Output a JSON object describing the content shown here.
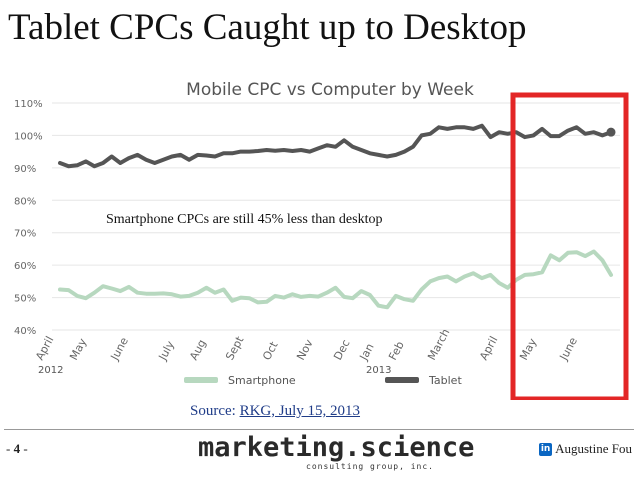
{
  "slide": {
    "title": "Tablet CPCs Caught up to Desktop",
    "source_label": "Source: ",
    "source_link": "RKG, July 15, 2013",
    "page_prefix": "- ",
    "page_number": "4",
    "page_suffix": " -",
    "logo_main": "marketing.science",
    "logo_sub": "consulting group, inc.",
    "author": "Augustine Fou",
    "linkedin_glyph": "in"
  },
  "colors": {
    "smartphone": "#b7d8bf",
    "tablet": "#555555",
    "highlight_box": "#e32626"
  },
  "chart_data": {
    "type": "line",
    "title": "Mobile CPC vs Computer by Week",
    "xlabel": "",
    "ylabel": "",
    "ylim": [
      40,
      110
    ],
    "yticks": [
      "40%",
      "50%",
      "60%",
      "70%",
      "80%",
      "90%",
      "100%",
      "110%"
    ],
    "grid": true,
    "x_labels": [
      "April",
      "May",
      "June",
      "July",
      "Aug",
      "Sept",
      "Oct",
      "Nov",
      "Dec",
      "Jan",
      "Feb",
      "March",
      "April",
      "May",
      "June"
    ],
    "years": [
      "2012",
      "2013"
    ],
    "annotation": "Smartphone CPCs are still 45% less than desktop",
    "highlight": "last 9 weeks (April 2013 – June 2013)",
    "legend": [
      "Smartphone",
      "Tablet"
    ],
    "series": [
      {
        "name": "Smartphone",
        "values": [
          52.5,
          52.3,
          50.5,
          49.8,
          51.5,
          53.5,
          52.8,
          52.0,
          53.3,
          51.5,
          51.2,
          51.2,
          51.3,
          51.0,
          50.3,
          50.5,
          51.5,
          53.0,
          51.5,
          52.5,
          49.0,
          50.0,
          49.8,
          48.5,
          48.7,
          50.5,
          50.0,
          51.0,
          50.2,
          50.5,
          50.3,
          51.5,
          53.0,
          50.2,
          49.8,
          52.0,
          50.8,
          47.5,
          47.0,
          50.5,
          49.5,
          49.0,
          52.5,
          55.0,
          56.0,
          56.5,
          55.0,
          56.5,
          57.5,
          56.0,
          57.0,
          54.5,
          53.0,
          55.5,
          57.0,
          57.2,
          57.8,
          63.0,
          61.5,
          63.8,
          64.0,
          62.8,
          64.2,
          61.5,
          57.0
        ]
      },
      {
        "name": "Tablet",
        "values": [
          91.5,
          90.5,
          90.8,
          92.0,
          90.5,
          91.5,
          93.5,
          91.5,
          93.0,
          94.0,
          92.5,
          91.5,
          92.5,
          93.5,
          94.0,
          92.5,
          94.0,
          93.8,
          93.5,
          94.5,
          94.5,
          95.0,
          95.0,
          95.2,
          95.5,
          95.3,
          95.5,
          95.2,
          95.5,
          95.0,
          96.0,
          97.0,
          96.5,
          98.5,
          96.5,
          95.5,
          94.5,
          94.0,
          93.5,
          94.0,
          95.0,
          96.5,
          100.0,
          100.5,
          102.5,
          102.0,
          102.5,
          102.5,
          102.0,
          103.0,
          99.5,
          101.0,
          100.5,
          101.0,
          99.5,
          100.0,
          102.0,
          99.8,
          99.8,
          101.5,
          102.5,
          100.5,
          101.0,
          100.0,
          101.0
        ]
      }
    ]
  }
}
